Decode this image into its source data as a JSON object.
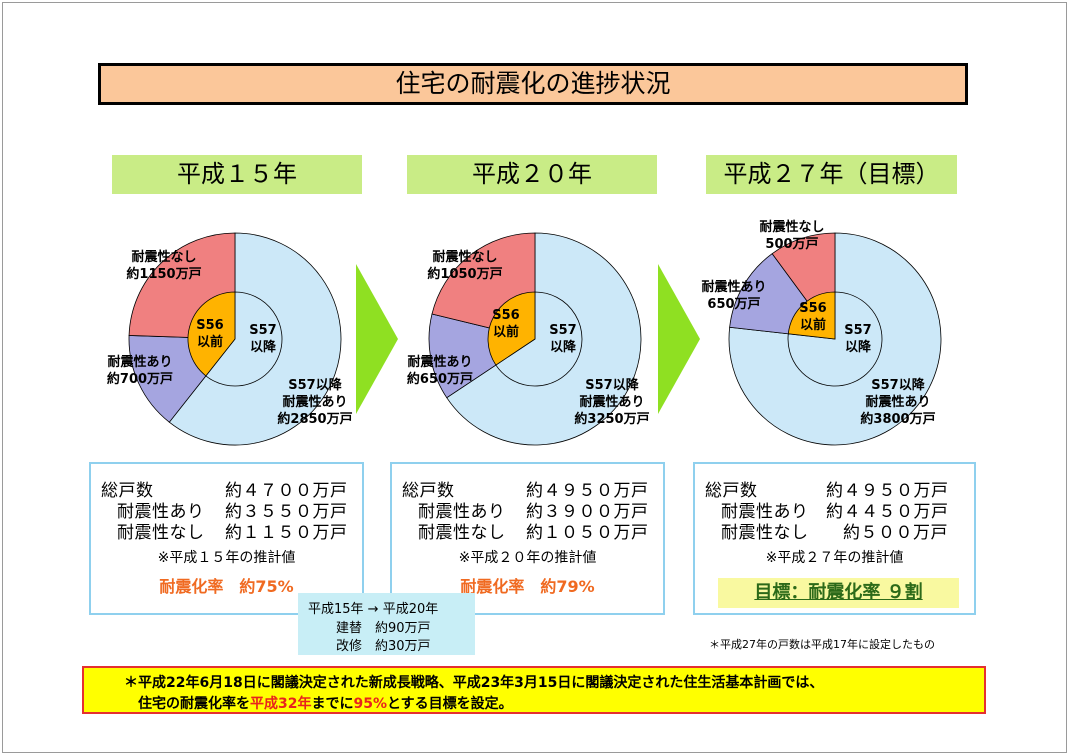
{
  "title": "住宅の耐震化の進捗状況",
  "colors": {
    "no_resistance": "#f08080",
    "with_resistance_old": "#a5a5e0",
    "pre_s56": "#ffb300",
    "post_s57": "#cce8f8",
    "header_bg": "#c9ec86",
    "arrow": "#8fe022"
  },
  "periods": [
    {
      "header": "平成１５年",
      "inner_old": "S56\n以前",
      "inner_new": "S57\n以降",
      "label_none": "耐震性なし\n約1150万戸",
      "label_with": "耐震性あり\n約700万戸",
      "label_post": "S57以降\n耐震性あり\n約2850万戸",
      "summary": {
        "total_label": "総戸数",
        "total_value": "約４７００万戸",
        "with_label": "耐震性あり",
        "with_value": "約３５５０万戸",
        "without_label": "耐震性なし",
        "without_value": "約１１５０万戸",
        "note": "※平成１５年の推計値",
        "rate": "耐震化率　約75%"
      }
    },
    {
      "header": "平成２０年",
      "inner_old": "S56\n以前",
      "inner_new": "S57\n以降",
      "label_none": "耐震性なし\n約1050万戸",
      "label_with": "耐震性あり\n約650万戸",
      "label_post": "S57以降\n耐震性あり\n約3250万戸",
      "summary": {
        "total_label": "総戸数",
        "total_value": "約４９５０万戸",
        "with_label": "耐震性あり",
        "with_value": "約３９００万戸",
        "without_label": "耐震性なし",
        "without_value": "約１０５０万戸",
        "note": "※平成２０年の推計値",
        "rate": "耐震化率　約79%"
      }
    },
    {
      "header": "平成２７年（目標）",
      "inner_old": "S56\n以前",
      "inner_new": "S57\n以降",
      "label_none": "耐震性なし\n500万戸",
      "label_with": "耐震性あり\n650万戸",
      "label_post": "S57以降\n耐震性あり\n約3800万戸",
      "summary": {
        "total_label": "総戸数",
        "total_value": "約４９５０万戸",
        "with_label": "耐震性あり",
        "with_value": "約４４５０万戸",
        "without_label": "耐震性なし",
        "without_value": "約５００万戸",
        "note": "※平成２７年の推計値",
        "goal": "目標：耐震化率 ９割"
      }
    }
  ],
  "chart_data": [
    {
      "type": "pie",
      "title": "平成１５年",
      "outer": [
        {
          "name": "S57以降 耐震性あり",
          "value": 2850
        },
        {
          "name": "耐震性あり",
          "value": 700
        },
        {
          "name": "耐震性なし",
          "value": 1150
        }
      ],
      "inner": [
        {
          "name": "S56以前",
          "value": 1850
        },
        {
          "name": "S57以降",
          "value": 2850
        }
      ]
    },
    {
      "type": "pie",
      "title": "平成２０年",
      "outer": [
        {
          "name": "S57以降 耐震性あり",
          "value": 3250
        },
        {
          "name": "耐震性あり",
          "value": 650
        },
        {
          "name": "耐震性なし",
          "value": 1050
        }
      ],
      "inner": [
        {
          "name": "S56以前",
          "value": 1700
        },
        {
          "name": "S57以降",
          "value": 3250
        }
      ]
    },
    {
      "type": "pie",
      "title": "平成２７年（目標）",
      "outer": [
        {
          "name": "S57以降 耐震性あり",
          "value": 3800
        },
        {
          "name": "耐震性あり",
          "value": 650
        },
        {
          "name": "耐震性なし",
          "value": 500
        }
      ],
      "inner": [
        {
          "name": "S56以前",
          "value": 1150
        },
        {
          "name": "S57以降",
          "value": 3800
        }
      ]
    }
  ],
  "inset": {
    "line1": "平成15年 → 平成20年",
    "line2": "建替　約90万戸",
    "line3": "改修　約30万戸"
  },
  "footnote": "＊平成27年の戸数は平成17年に設定したもの",
  "bottom": {
    "line1": "＊平成22年6月18日に閣議決定された新成長戦略、平成23年3月15日に閣議決定された住生活基本計画では、",
    "line2_a": "住宅の耐震化率を",
    "line2_b": "平成32年",
    "line2_c": "までに",
    "line2_d": "95%",
    "line2_e": "とする目標を設定。"
  }
}
